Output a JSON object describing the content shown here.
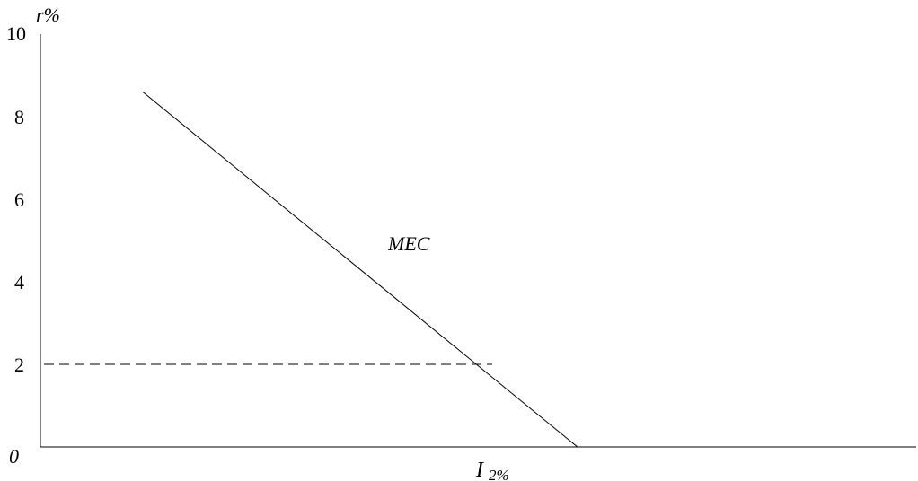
{
  "chart_data": {
    "type": "line",
    "title": "",
    "ylabel": "r%",
    "xlabel_main": "I",
    "xlabel_sub": "2%",
    "ylim": [
      0,
      10
    ],
    "yticks": [
      "0",
      "2",
      "4",
      "6",
      "8",
      "10"
    ],
    "grid": false,
    "series": [
      {
        "name": "MEC",
        "points": [
          {
            "x": 1.2,
            "y": 8.6
          },
          {
            "x": 6.3,
            "y": 0
          }
        ]
      }
    ],
    "reference_lines": [
      {
        "style": "dashed",
        "y": 2,
        "x_from": 0,
        "x_to": 5.3
      }
    ],
    "annotations": [
      {
        "text": "MEC"
      }
    ]
  }
}
